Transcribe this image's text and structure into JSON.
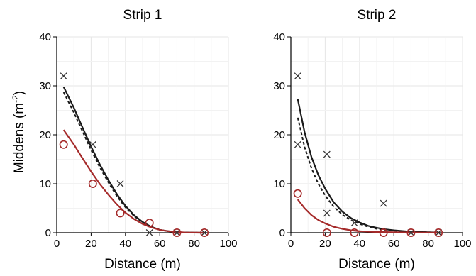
{
  "ylabel": "Middens (m",
  "ylabel_sup": "-2",
  "ylabel_close": ")",
  "colors": {
    "black": "#1a1a1a",
    "red": "#a52a2a",
    "grid": "#e6e6e6"
  },
  "chart_data": [
    {
      "type": "line",
      "title": "Strip 1",
      "xlabel": "Distance (m)",
      "xlim": [
        0,
        100
      ],
      "ylim": [
        0,
        40
      ],
      "xticks": [
        0,
        20,
        40,
        60,
        80,
        100
      ],
      "yticks": [
        0,
        10,
        20,
        30,
        40
      ],
      "grid": true,
      "markers": [
        {
          "name": "x",
          "x": [
            4,
            21,
            37,
            54,
            70,
            86
          ],
          "y": [
            32,
            18,
            10,
            0,
            0,
            0
          ]
        },
        {
          "name": "o",
          "x": [
            4,
            21,
            37,
            54,
            70,
            86
          ],
          "y": [
            18,
            10,
            4,
            2,
            0,
            0
          ]
        }
      ],
      "series": [
        {
          "style": "solid-black",
          "x": [
            4,
            10,
            15,
            20,
            25,
            30,
            35,
            40,
            45,
            50,
            55,
            60,
            65,
            70,
            75,
            80,
            86
          ],
          "y": [
            29.8,
            25.5,
            21.5,
            17.6,
            14.0,
            10.8,
            7.9,
            5.5,
            3.6,
            2.2,
            1.2,
            0.6,
            0.3,
            0.1,
            0.05,
            0.02,
            0.0
          ]
        },
        {
          "style": "dashed-black",
          "x": [
            4,
            10,
            15,
            20,
            25,
            30,
            35,
            40,
            45,
            50,
            55,
            60,
            65,
            70,
            75,
            80,
            86
          ],
          "y": [
            28.7,
            24.5,
            20.7,
            16.9,
            13.4,
            10.3,
            7.5,
            5.2,
            3.4,
            2.1,
            1.2,
            0.6,
            0.3,
            0.1,
            0.05,
            0.02,
            0.0
          ]
        },
        {
          "style": "solid-red",
          "x": [
            4,
            10,
            15,
            20,
            25,
            30,
            35,
            40,
            45,
            50,
            55,
            60,
            65,
            70,
            75,
            80,
            86
          ],
          "y": [
            21.0,
            18.0,
            15.2,
            12.5,
            10.0,
            7.8,
            5.8,
            4.1,
            2.8,
            1.8,
            1.1,
            0.6,
            0.3,
            0.15,
            0.05,
            0.02,
            0.0
          ]
        }
      ]
    },
    {
      "type": "line",
      "title": "Strip 2",
      "xlabel": "Distance (m)",
      "xlim": [
        0,
        100
      ],
      "ylim": [
        0,
        40
      ],
      "xticks": [
        0,
        20,
        40,
        60,
        80,
        100
      ],
      "yticks": [
        0,
        10,
        20,
        30,
        40
      ],
      "grid": true,
      "markers": [
        {
          "name": "x",
          "x": [
            4,
            4,
            21,
            21,
            37,
            54,
            70,
            86
          ],
          "y": [
            32,
            18,
            16,
            4,
            2,
            6,
            0,
            0
          ]
        },
        {
          "name": "o",
          "x": [
            4,
            21,
            37,
            54,
            70,
            86
          ],
          "y": [
            8,
            0,
            0,
            0,
            0,
            0
          ]
        }
      ],
      "series": [
        {
          "style": "solid-black",
          "x": [
            4,
            8,
            12,
            16,
            20,
            25,
            30,
            35,
            40,
            45,
            50,
            55,
            60,
            70,
            80,
            86
          ],
          "y": [
            27.3,
            20.5,
            15.5,
            11.8,
            9.0,
            6.2,
            4.3,
            3.0,
            2.1,
            1.4,
            1.0,
            0.7,
            0.5,
            0.2,
            0.1,
            0.05
          ]
        },
        {
          "style": "dashed-black",
          "x": [
            4,
            8,
            12,
            16,
            20,
            25,
            30,
            35,
            40,
            45,
            50,
            55,
            60,
            70,
            80,
            86
          ],
          "y": [
            23.5,
            17.5,
            13.2,
            10.0,
            7.6,
            5.3,
            3.7,
            2.6,
            1.8,
            1.2,
            0.8,
            0.6,
            0.4,
            0.2,
            0.1,
            0.05
          ]
        },
        {
          "style": "solid-red",
          "x": [
            4,
            8,
            12,
            16,
            20,
            25,
            30,
            35,
            40,
            50,
            60,
            70,
            80,
            86
          ],
          "y": [
            6.8,
            5.0,
            3.6,
            2.6,
            1.9,
            1.2,
            0.8,
            0.5,
            0.3,
            0.15,
            0.08,
            0.04,
            0.02,
            0.01
          ]
        }
      ]
    }
  ]
}
